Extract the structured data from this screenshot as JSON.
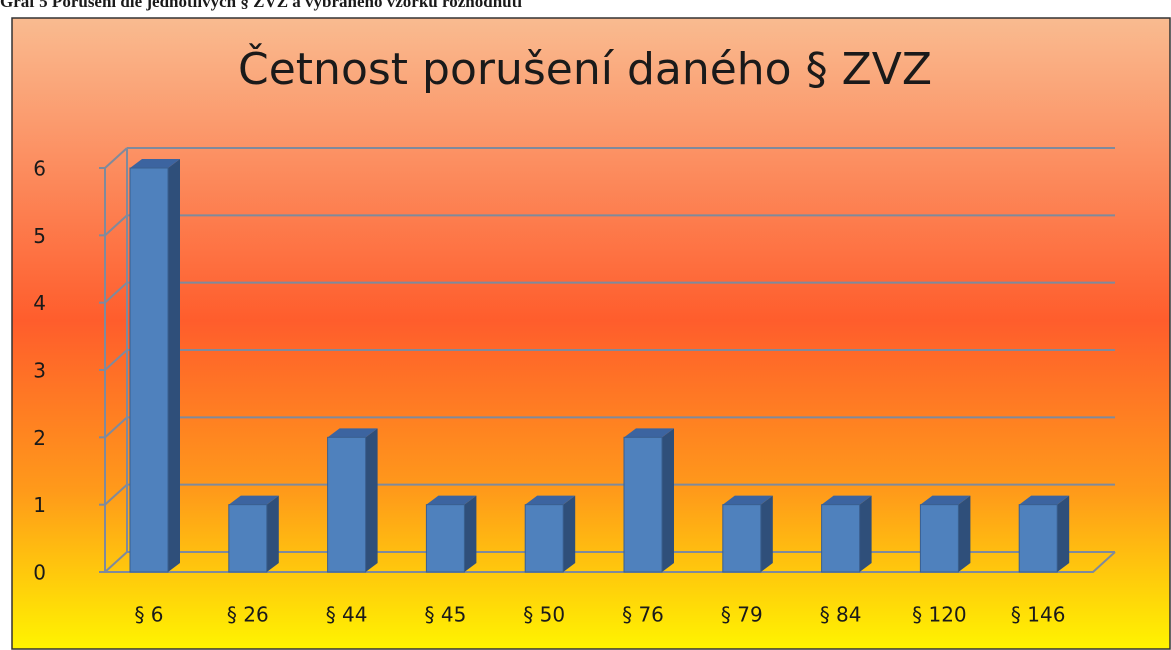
{
  "caption": "Graf 5 Porušení dle jednotlivých § ZVZ a vybraného vzorku rozhodnutí",
  "chart_data": {
    "type": "bar",
    "title": "Četnost porušení daného § ZVZ",
    "categories": [
      "§ 6",
      "§ 26",
      "§ 44",
      "§ 45",
      "§ 50",
      "§ 76",
      "§ 79",
      "§ 84",
      "§ 120",
      "§ 146"
    ],
    "values": [
      6,
      1,
      2,
      1,
      1,
      2,
      1,
      1,
      1,
      1
    ],
    "color": "#4f81bd",
    "ylim": [
      0,
      6
    ],
    "yticks": [
      0,
      1,
      2,
      3,
      4,
      5,
      6
    ],
    "grid": true
  }
}
